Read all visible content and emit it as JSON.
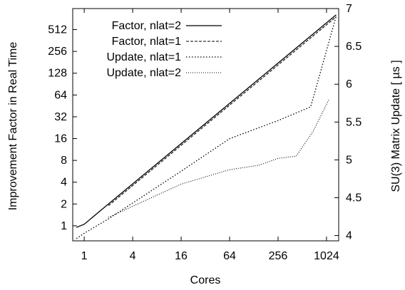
{
  "chart_data": {
    "type": "line",
    "xlabel": "Cores",
    "ylabel": "Improvement Factor in Real Time",
    "y2label": "SU(3) Matrix Update [ µs ]",
    "x_scale": "log2",
    "xlim": [
      0.72,
      1450
    ],
    "ylim": [
      0.62,
      1000
    ],
    "y2lim": [
      3.93,
      7.0
    ],
    "xtick_labels": [
      "1",
      "4",
      "16",
      "64",
      "256",
      "1024"
    ],
    "xticks": [
      1,
      4,
      16,
      64,
      256,
      1024
    ],
    "ytick_labels": [
      "1",
      "2",
      "4",
      "8",
      "16",
      "32",
      "64",
      "128",
      "256",
      "512"
    ],
    "yticks": [
      1,
      2,
      4,
      8,
      16,
      32,
      64,
      128,
      256,
      512
    ],
    "y2tick_labels": [
      "4",
      "4.5",
      "5",
      "5.5",
      "6",
      "6.5",
      "7"
    ],
    "y2ticks": [
      4,
      4.5,
      5,
      5.5,
      6,
      6.5,
      7
    ],
    "legend_position": "top-left",
    "grid": false,
    "series": [
      {
        "name": "Factor, nlat=2",
        "axis": "left",
        "style": "solid",
        "x": [
          0.8,
          1,
          2,
          1350
        ],
        "y": [
          0.95,
          1.05,
          2.0,
          820
        ]
      },
      {
        "name": "Factor, nlat=1",
        "axis": "left",
        "style": "dashed",
        "x": [
          2,
          1350
        ],
        "y": [
          1.9,
          770
        ]
      },
      {
        "name": "Update, nlat=1",
        "axis": "right",
        "style": "dotted",
        "x": [
          0.8,
          1,
          2,
          16,
          64,
          256,
          650,
          1350
        ],
        "y": [
          3.96,
          4.03,
          4.22,
          4.85,
          5.28,
          5.52,
          5.7,
          6.9
        ]
      },
      {
        "name": "Update, nlat=2",
        "axis": "right",
        "style": "fine-dotted",
        "x": [
          2,
          16,
          64,
          150,
          256,
          430,
          700,
          1100
        ],
        "y": [
          4.24,
          4.68,
          4.87,
          4.93,
          5.02,
          5.05,
          5.38,
          5.8
        ]
      }
    ]
  }
}
